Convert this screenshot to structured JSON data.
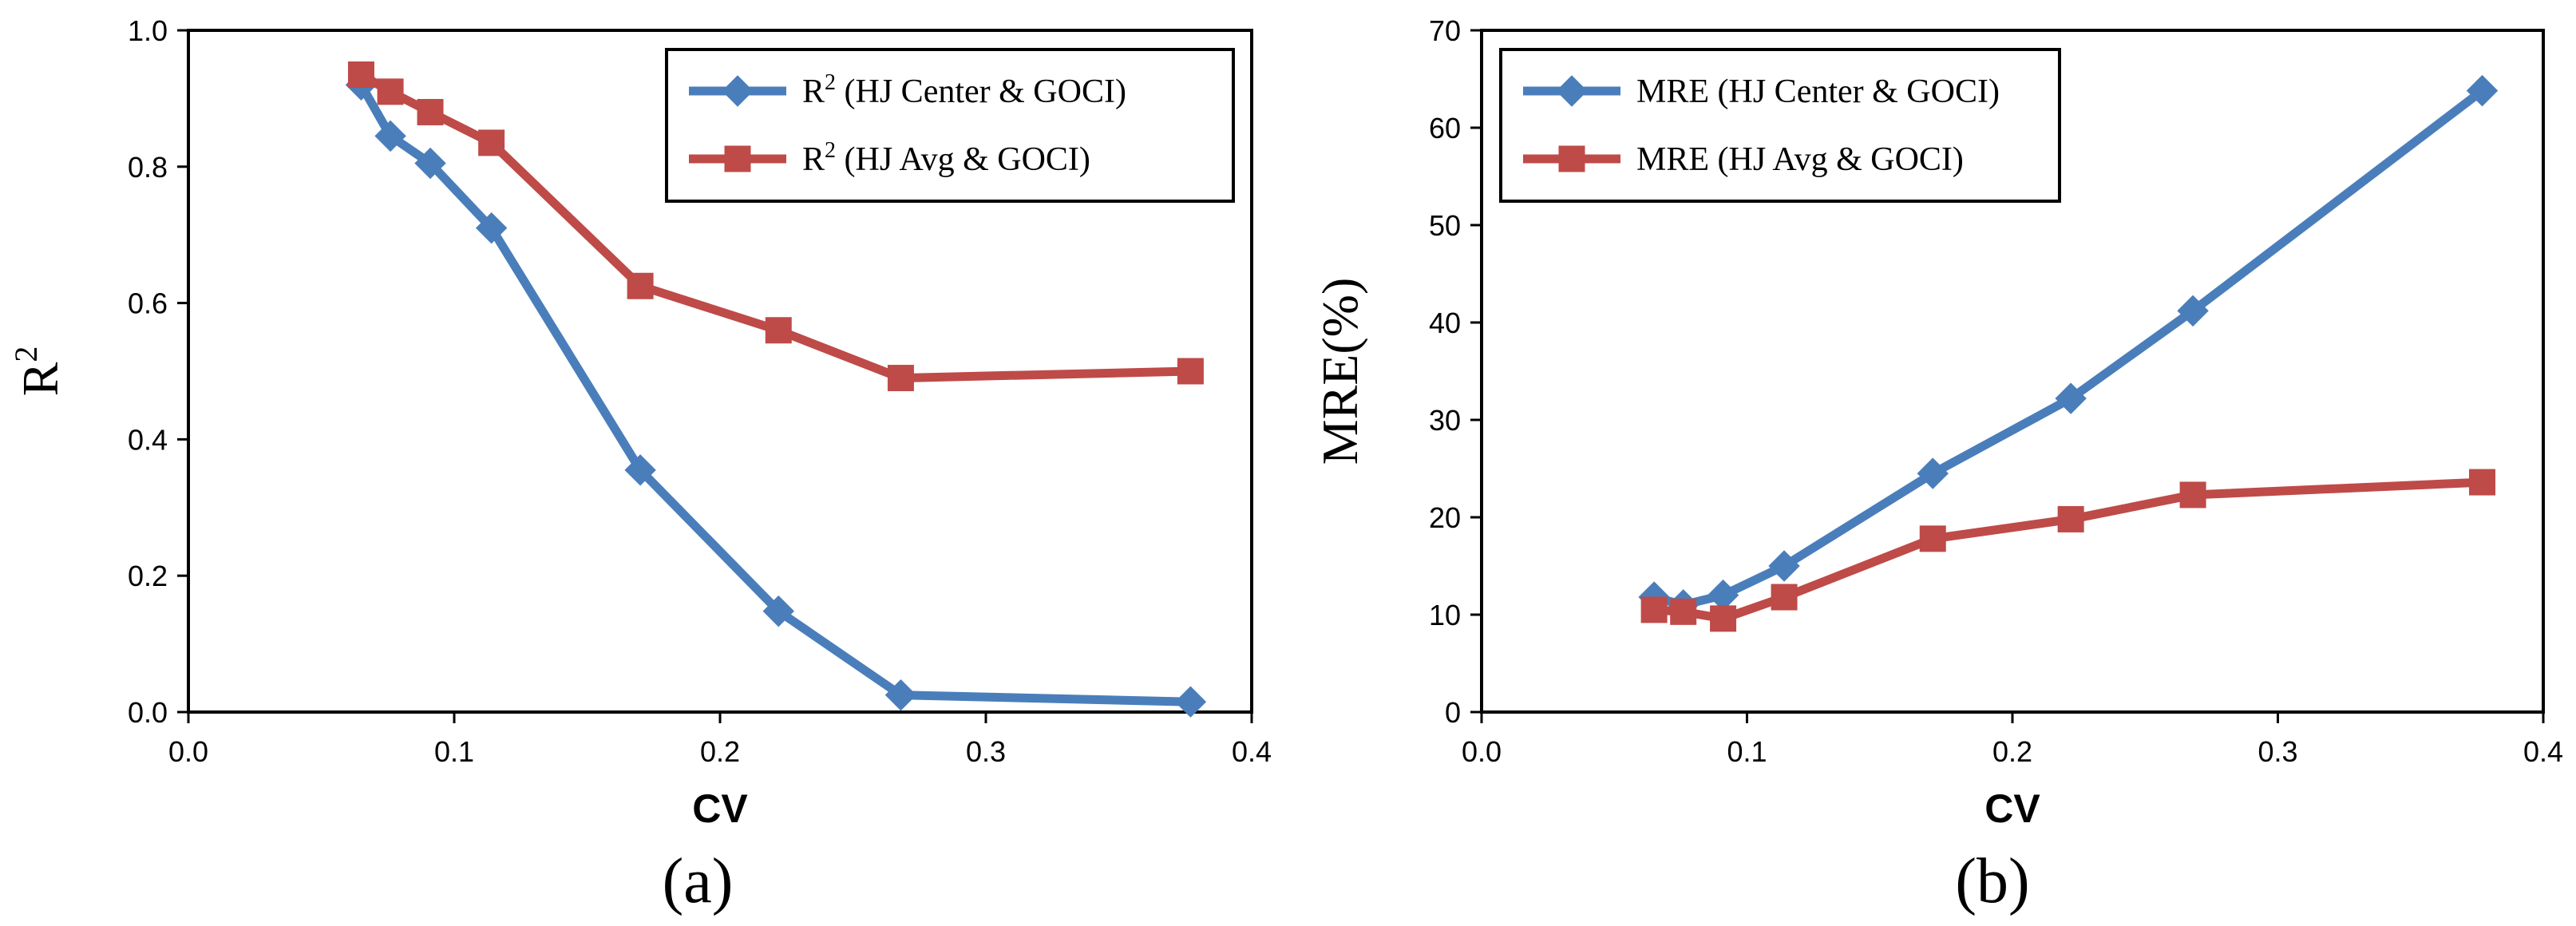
{
  "chart_data": [
    {
      "type": "line",
      "caption": "(a)",
      "xlabel": "CV",
      "ylabel": "R",
      "ylabel_sup": "2",
      "xlim": [
        0.0,
        0.4
      ],
      "ylim": [
        0.0,
        1.0
      ],
      "xticks": [
        "0.0",
        "0.1",
        "0.2",
        "0.3",
        "0.4"
      ],
      "yticks": [
        "0.0",
        "0.2",
        "0.4",
        "0.6",
        "0.8",
        "1.0"
      ],
      "grid": false,
      "legend_position": "top-right",
      "series": [
        {
          "name": "R2 (HJ Center & GOCI)",
          "legend_main": "R",
          "legend_sup": "2",
          "legend_rest": " (HJ Center & GOCI)",
          "marker": "diamond",
          "color": "#4a7ebb",
          "x": [
            0.065,
            0.076,
            0.091,
            0.114,
            0.17,
            0.222,
            0.268,
            0.377
          ],
          "y": [
            0.92,
            0.845,
            0.805,
            0.71,
            0.355,
            0.148,
            0.025,
            0.015
          ]
        },
        {
          "name": "R2 (HJ Avg & GOCI)",
          "legend_main": "R",
          "legend_sup": "2",
          "legend_rest": " (HJ Avg & GOCI)",
          "marker": "square",
          "color": "#be4b48",
          "x": [
            0.065,
            0.076,
            0.091,
            0.114,
            0.17,
            0.222,
            0.268,
            0.377
          ],
          "y": [
            0.935,
            0.91,
            0.88,
            0.835,
            0.625,
            0.56,
            0.49,
            0.5
          ]
        }
      ]
    },
    {
      "type": "line",
      "caption": "(b)",
      "xlabel": "CV",
      "ylabel": "MRE(%)",
      "ylabel_sup": "",
      "xlim": [
        0.0,
        0.4
      ],
      "ylim": [
        0,
        70
      ],
      "xticks": [
        "0.0",
        "0.1",
        "0.2",
        "0.3",
        "0.4"
      ],
      "yticks": [
        "0",
        "10",
        "20",
        "30",
        "40",
        "50",
        "60",
        "70"
      ],
      "grid": false,
      "legend_position": "top-left",
      "series": [
        {
          "name": "MRE (HJ Center & GOCI)",
          "legend_main": "MRE (HJ Center & GOCI)",
          "legend_sup": "",
          "legend_rest": "",
          "marker": "diamond",
          "color": "#4a7ebb",
          "x": [
            0.065,
            0.076,
            0.091,
            0.114,
            0.17,
            0.222,
            0.268,
            0.377
          ],
          "y": [
            11.8,
            11.0,
            12.0,
            15.0,
            24.5,
            32.2,
            41.2,
            63.8
          ]
        },
        {
          "name": "MRE (HJ Avg & GOCI)",
          "legend_main": "MRE (HJ Avg & GOCI)",
          "legend_sup": "",
          "legend_rest": "",
          "marker": "square",
          "color": "#be4b48",
          "x": [
            0.065,
            0.076,
            0.091,
            0.114,
            0.17,
            0.222,
            0.268,
            0.377
          ],
          "y": [
            10.5,
            10.3,
            9.6,
            11.8,
            17.8,
            19.8,
            22.3,
            23.6
          ]
        }
      ]
    }
  ]
}
